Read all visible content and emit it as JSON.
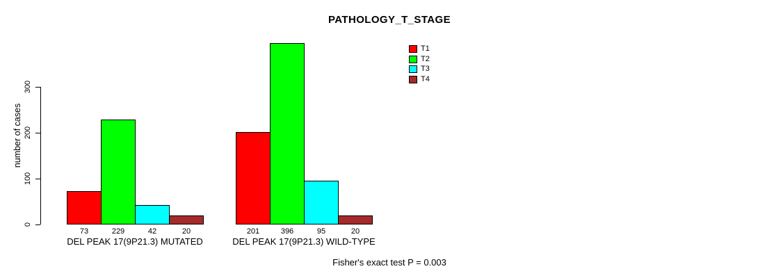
{
  "chart_data": {
    "type": "bar",
    "title": "PATHOLOGY_T_STAGE",
    "xlabel": "",
    "ylabel": "number of cases",
    "ylim": [
      0,
      300
    ],
    "yticks": [
      0,
      100,
      200,
      300
    ],
    "grid": false,
    "legend_position": "top-right",
    "categories": [
      "DEL PEAK 17(9P21.3) MUTATED",
      "DEL PEAK 17(9P21.3) WILD-TYPE"
    ],
    "series": [
      {
        "name": "T1",
        "color": "#FF0000",
        "values": [
          73,
          201
        ]
      },
      {
        "name": "T2",
        "color": "#00FF00",
        "values": [
          229,
          396
        ]
      },
      {
        "name": "T3",
        "color": "#00FFFF",
        "values": [
          42,
          95
        ]
      },
      {
        "name": "T4",
        "color": "#A52A2A",
        "values": [
          20,
          20
        ]
      }
    ],
    "bar_value_labels": [
      [
        "73",
        "229",
        "42",
        "20"
      ],
      [
        "201",
        "396",
        "95",
        "20"
      ]
    ],
    "annotation": "Fisher's exact test P = 0.003"
  }
}
